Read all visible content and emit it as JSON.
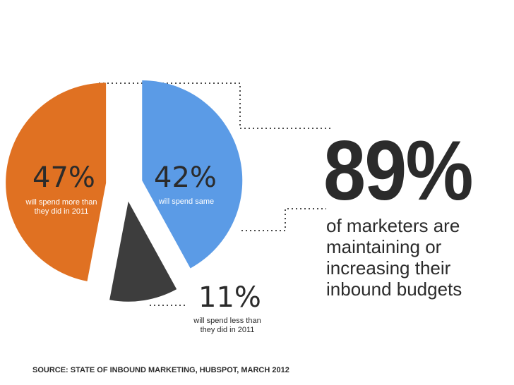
{
  "chart_data": {
    "type": "pie",
    "title": "",
    "slices": [
      {
        "value": 47,
        "label": "47%",
        "description": "will spend more than they did in 2011",
        "description_lines": [
          "will spend more than",
          "they did in 2011"
        ],
        "color": "#e07122"
      },
      {
        "value": 42,
        "label": "42%",
        "description": "will spend same",
        "description_lines": [
          "will spend same"
        ],
        "color": "#5b9be6"
      },
      {
        "value": 11,
        "label": "11%",
        "description": "will spend less than they did in 2011",
        "description_lines": [
          "will spend less than",
          "they did in 2011"
        ],
        "color": "#3d3d3d"
      }
    ],
    "legend": "none"
  },
  "callout": {
    "big_number": "89%",
    "caption_lines": [
      "of marketers are",
      "maintaining or",
      "increasing their",
      "inbound budgets"
    ]
  },
  "source": "SOURCE: STATE OF INBOUND MARKETING, HUBSPOT, MARCH 2012",
  "colors": {
    "text_dark": "#2b2b2b",
    "dots": "#4a4a4a",
    "background": "#ffffff"
  }
}
